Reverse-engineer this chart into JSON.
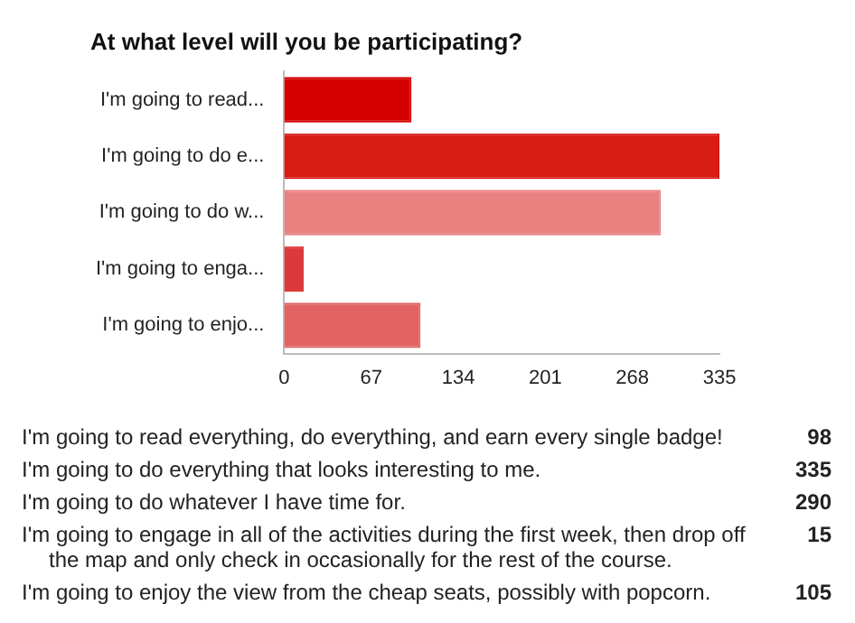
{
  "chart_data": {
    "type": "bar",
    "orientation": "horizontal",
    "title": "At what level will you be participating?",
    "categories": [
      "I'm going to read...",
      "I'm going to do e...",
      "I'm going to do w...",
      "I'm going to enga...",
      "I'm going to enjo..."
    ],
    "annotations": [
      "I'm going to read everything, do everything, and earn every single badge!",
      "98",
      "I'm going to do everything that looks interesting to me.",
      "335",
      "I'm going to do whatever I have time for.",
      "290",
      "I'm going to engage in all of the activities during the first week, then drop off the map and only check in occasionally for the rest of the course.",
      "15",
      "I'm going to enjoy the view from the cheap seats, possibly with popcorn.",
      "105"
    ],
    "values": [
      98,
      335,
      290,
      15,
      105
    ],
    "colors": [
      "#d40000",
      "#d81c16",
      "#e98181",
      "#dc3a3a",
      "#e26262"
    ],
    "xlim": [
      0,
      335
    ],
    "xticks": [
      0,
      67,
      134,
      201,
      268,
      335
    ],
    "grid": false,
    "legend": false
  }
}
